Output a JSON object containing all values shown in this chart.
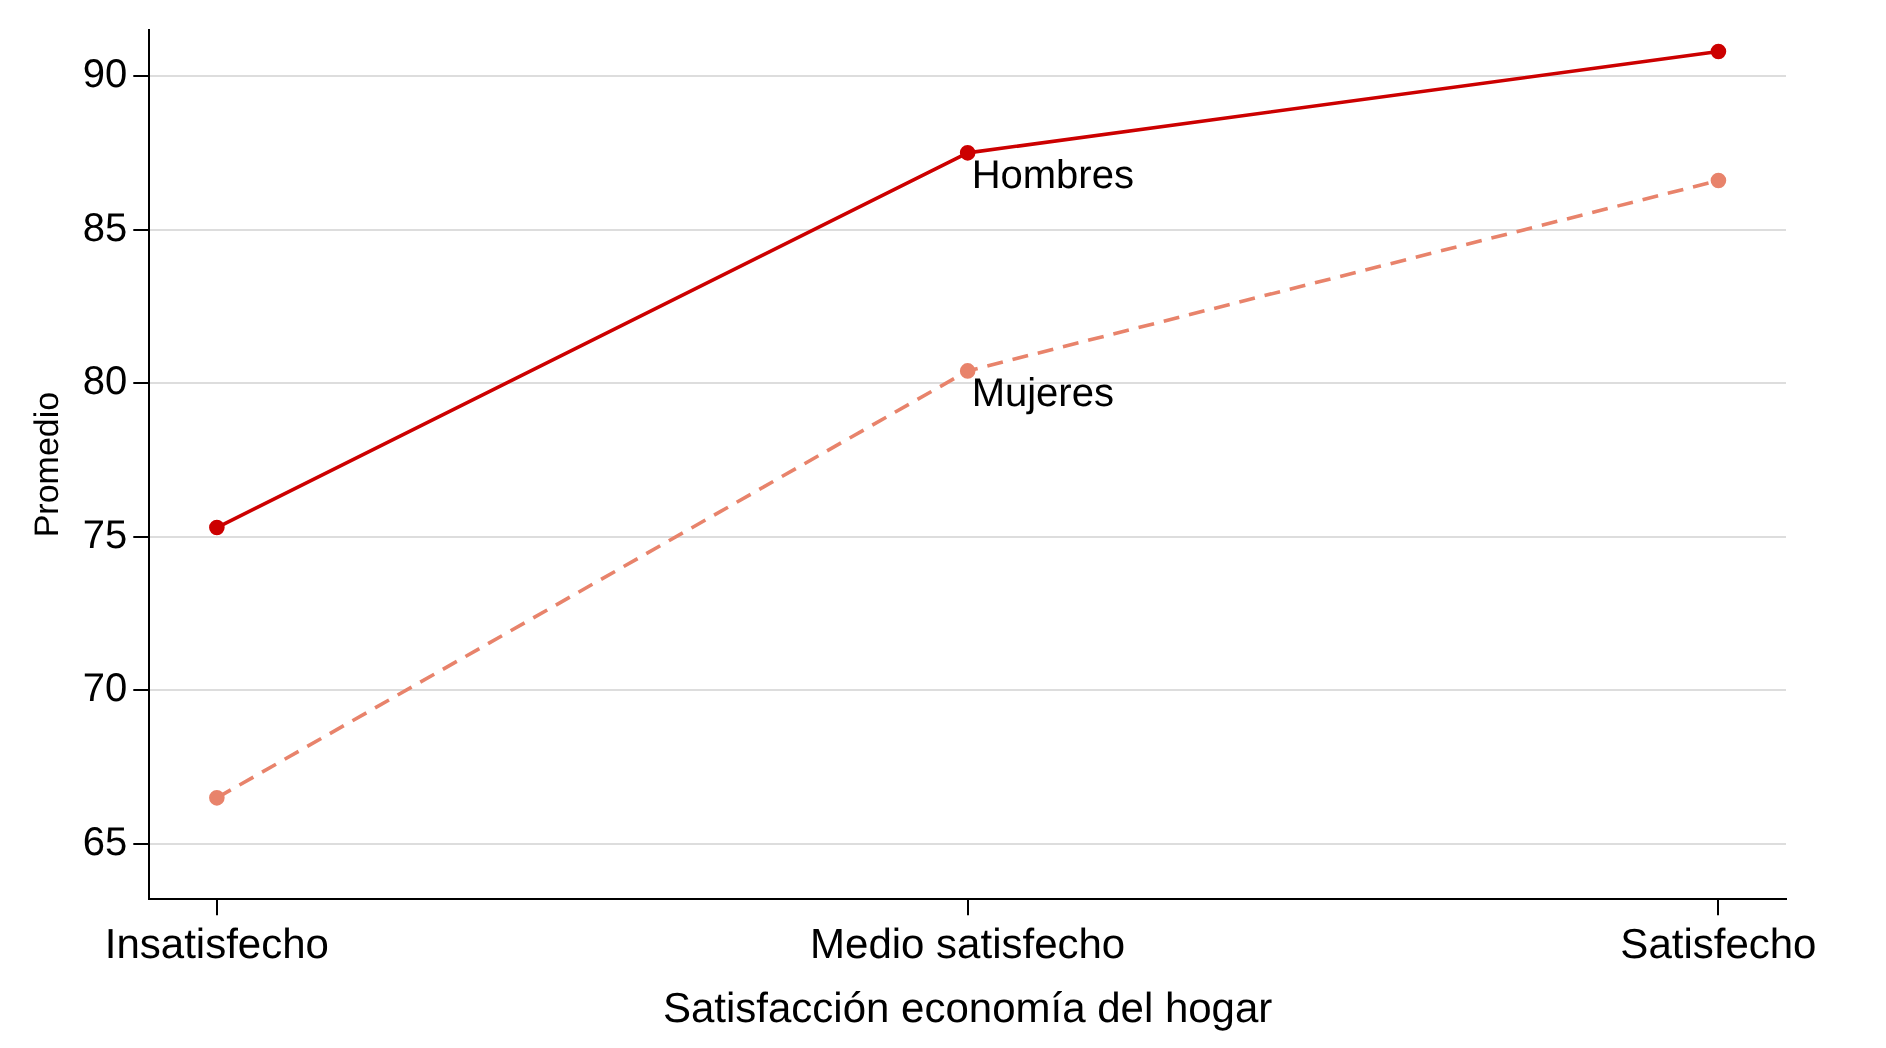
{
  "chart_data": {
    "type": "line",
    "xlabel": "Satisfacción economía del hogar",
    "ylabel": "Promedio",
    "categories": [
      "Insatisfecho",
      "Medio satisfecho",
      "Satisfecho"
    ],
    "series": [
      {
        "name": "Hombres",
        "color": "#cc0000",
        "values": [
          75.3,
          87.5,
          90.8
        ],
        "line_style": "solid"
      },
      {
        "name": "Mujeres",
        "color": "#e8836b",
        "values": [
          66.5,
          80.4,
          86.6
        ],
        "line_style": "dashed"
      }
    ],
    "ylim": [
      63.2,
      91.5
    ],
    "yticks": [
      65,
      70,
      75,
      80,
      85,
      90
    ],
    "grid": "y",
    "legend": false,
    "marker": "circle"
  }
}
